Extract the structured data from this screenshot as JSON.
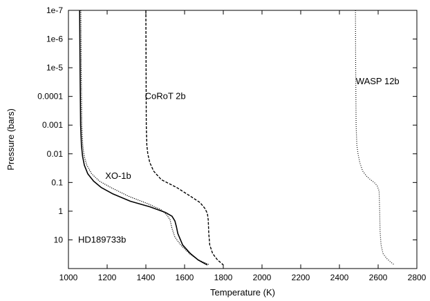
{
  "chart_data": {
    "type": "line",
    "title": "",
    "xlabel": "Temperature (K)",
    "ylabel": "Pressure (bars)",
    "xlim": [
      1000,
      2800
    ],
    "ylim_log10": [
      -7,
      2
    ],
    "y_scale": "log",
    "y_inverted": true,
    "grid": false,
    "legend": "none",
    "x_ticks": [
      1000,
      1200,
      1400,
      1600,
      1800,
      2000,
      2200,
      2400,
      2600,
      2800
    ],
    "x_tick_labels": [
      "1000",
      "1200",
      "1400",
      "1600",
      "1800",
      "2000",
      "2200",
      "2400",
      "2600",
      "2800"
    ],
    "y_ticks_log10": [
      -7,
      -6,
      -5,
      -4,
      -3,
      -2,
      -1,
      0,
      1
    ],
    "y_tick_labels": [
      "1e-7",
      "1e-6",
      "1e-5",
      "0.0001",
      "0.001",
      "0.01",
      "0.1",
      "1",
      "10"
    ],
    "annotations": [
      {
        "text": "HD189733b",
        "x": 1050,
        "p": 10
      },
      {
        "text": "XO-1b",
        "x": 1190,
        "p": 0.06
      },
      {
        "text": "CoRoT 2b",
        "x": 1395,
        "p": 0.0001
      },
      {
        "text": "WASP 12b",
        "x": 2485,
        "p": 3e-05
      }
    ],
    "series": [
      {
        "style": "solid",
        "x": [
          1058,
          1060,
          1063,
          1067,
          1073,
          1082,
          1100,
          1130,
          1170,
          1230,
          1320,
          1420,
          1500,
          1535,
          1550,
          1558,
          1565,
          1590,
          1630,
          1670,
          1700,
          1718
        ],
        "p": [
          1e-07,
          1e-05,
          0.001,
          0.005,
          0.012,
          0.025,
          0.05,
          0.09,
          0.15,
          0.25,
          0.45,
          0.7,
          1.1,
          1.5,
          2.2,
          3.5,
          6,
          15,
          30,
          50,
          65,
          75
        ]
      },
      {
        "style": "dotted",
        "x": [
          1064,
          1066,
          1069,
          1074,
          1081,
          1095,
          1120,
          1160,
          1220,
          1310,
          1410,
          1480,
          1510,
          1525,
          1535,
          1550,
          1580,
          1625,
          1670,
          1710,
          1730
        ],
        "p": [
          1e-07,
          1e-05,
          0.001,
          0.005,
          0.012,
          0.025,
          0.05,
          0.09,
          0.15,
          0.3,
          0.55,
          0.9,
          1.4,
          2,
          4,
          8,
          15,
          30,
          50,
          65,
          75
        ]
      },
      {
        "style": "dashed",
        "x": [
          1400,
          1401,
          1402,
          1405,
          1410,
          1420,
          1440,
          1480,
          1560,
          1630,
          1680,
          1705,
          1718,
          1722,
          1725,
          1730,
          1745,
          1770,
          1790,
          1800
        ],
        "p": [
          1e-07,
          1e-05,
          0.001,
          0.005,
          0.01,
          0.02,
          0.04,
          0.08,
          0.15,
          0.3,
          0.5,
          0.8,
          1.2,
          2,
          6,
          15,
          30,
          50,
          65,
          75
        ]
      },
      {
        "style": "fine-dotted",
        "x": [
          2483,
          2484,
          2486,
          2490,
          2496,
          2505,
          2520,
          2540,
          2560,
          2580,
          2595,
          2605,
          2608,
          2610,
          2615,
          2625,
          2645,
          2665,
          2685
        ],
        "p": [
          1e-07,
          1e-05,
          0.001,
          0.005,
          0.01,
          0.02,
          0.04,
          0.06,
          0.08,
          0.1,
          0.13,
          0.2,
          1,
          5,
          15,
          30,
          45,
          60,
          75
        ]
      }
    ]
  }
}
